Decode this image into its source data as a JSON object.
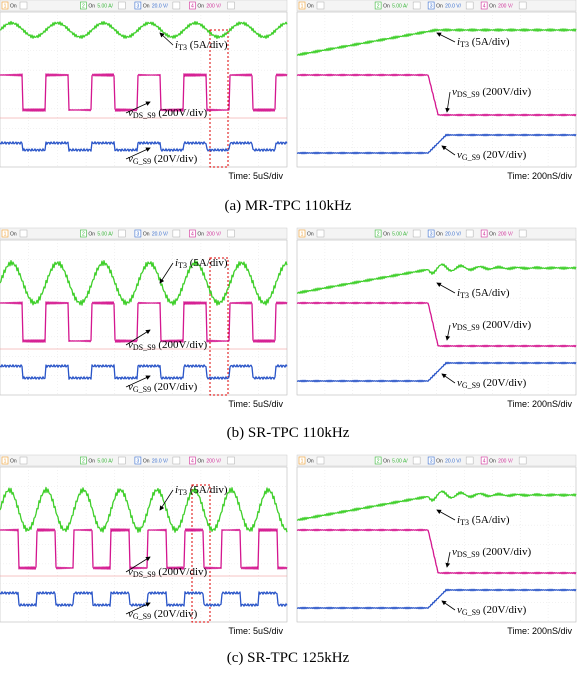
{
  "scope_header": [
    {
      "num": "1",
      "state": "On"
    },
    {
      "num": "2",
      "state": "On",
      "scale": "5.00 A/"
    },
    {
      "num": "3",
      "state": "On",
      "scale": "20.0 V/"
    },
    {
      "num": "4",
      "state": "On",
      "scale": "200 V/"
    }
  ],
  "signals": [
    {
      "symbol": "i",
      "sub": "T3",
      "text": " (5A/div)"
    },
    {
      "symbol": "v",
      "sub": "DS_S9",
      "text": " (200V/div)"
    },
    {
      "symbol": "v",
      "sub": "G_S9",
      "text": " (20V/div)"
    }
  ],
  "panels": [
    {
      "caption": "(a) MR-TPC 110kHz",
      "scopes": [
        {
          "time": "Time: 5uS/div"
        },
        {
          "time": "Time: 200nS/div"
        }
      ]
    },
    {
      "caption": "(b) SR-TPC 110kHz",
      "scopes": [
        {
          "time": "Time: 5uS/div"
        },
        {
          "time": "Time: 200nS/div"
        }
      ]
    },
    {
      "caption": "(c) SR-TPC 125kHz",
      "scopes": [
        {
          "time": "Time: 5uS/div"
        },
        {
          "time": "Time: 200nS/div"
        }
      ]
    }
  ]
}
